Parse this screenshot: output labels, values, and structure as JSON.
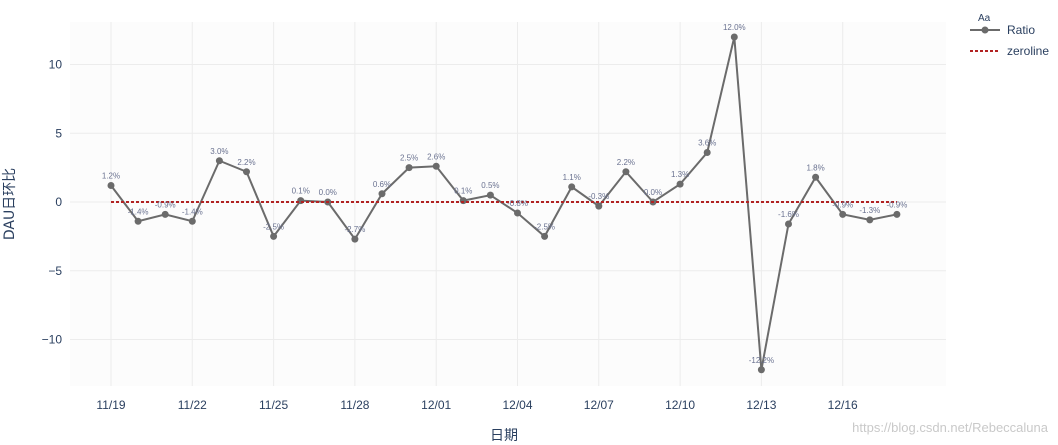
{
  "chart_data": {
    "type": "line",
    "xlabel": "日期",
    "ylabel": "DAU日环比",
    "xticks": [
      "11/19",
      "11/22",
      "11/25",
      "11/28",
      "12/01",
      "12/04",
      "12/07",
      "12/10",
      "12/13",
      "12/16"
    ],
    "yticks": [
      "10",
      "5",
      "0",
      "−5",
      "−10"
    ],
    "ytick_values": [
      10,
      5,
      0,
      -5,
      -10
    ],
    "ylim": [
      -13.5,
      13.5
    ],
    "grid": true,
    "legend": {
      "title": "Aa",
      "placement": "top-right"
    },
    "x": [
      "11/19",
      "11/20",
      "11/21",
      "11/22",
      "11/23",
      "11/24",
      "11/25",
      "11/26",
      "11/27",
      "11/28",
      "11/29",
      "11/30",
      "12/01",
      "12/02",
      "12/03",
      "12/04",
      "12/05",
      "12/06",
      "12/07",
      "12/08",
      "12/09",
      "12/10",
      "12/11",
      "12/12",
      "12/13",
      "12/14",
      "12/15",
      "12/16",
      "12/17",
      "12/18"
    ],
    "series": [
      {
        "name": "Ratio",
        "color": "#6b6b6b",
        "values": [
          1.2,
          -1.4,
          -0.9,
          -1.4,
          3.0,
          2.2,
          -2.5,
          0.1,
          0.0,
          -2.7,
          0.6,
          2.5,
          2.6,
          0.1,
          0.5,
          -0.8,
          -2.5,
          1.1,
          -0.3,
          2.2,
          0.0,
          1.3,
          3.6,
          12.0,
          -12.2,
          -1.6,
          1.8,
          -0.9,
          -1.3,
          -0.9
        ],
        "labels": [
          "1.2%",
          "-1.4%",
          "-0.9%",
          "-1.4%",
          "3.0%",
          "2.2%",
          "-2.5%",
          "0.1%",
          "0.0%",
          "-2.7%",
          "0.6%",
          "2.5%",
          "2.6%",
          "0.1%",
          "0.5%",
          "-0.8%",
          "-2.5%",
          "1.1%",
          "-0.3%",
          "2.2%",
          "0.0%",
          "1.3%",
          "3.6%",
          "12.0%",
          "-12.2%",
          "-1.6%",
          "1.8%",
          "-0.9%",
          "-1.3%",
          "-0.9%"
        ]
      },
      {
        "name": "zeroline",
        "color": "#b22222",
        "style": "dashed",
        "values": [
          0,
          0,
          0,
          0,
          0,
          0,
          0,
          0,
          0,
          0,
          0,
          0,
          0,
          0,
          0,
          0,
          0,
          0,
          0,
          0,
          0,
          0,
          0,
          0,
          0,
          0,
          0,
          0,
          0,
          0
        ]
      }
    ]
  },
  "watermark": "https://blog.csdn.net/Rebeccaluna"
}
